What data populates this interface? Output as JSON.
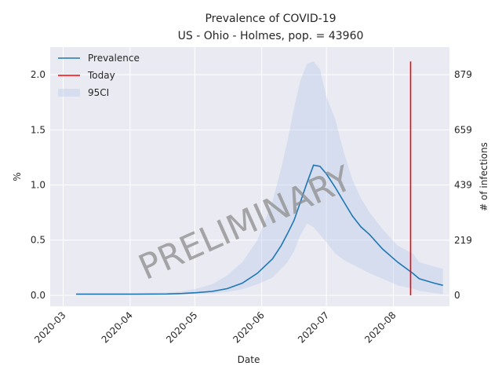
{
  "chart_data": {
    "type": "line",
    "title": "Prevalence of COVID-19",
    "subtitle": "US - Ohio - Holmes, pop. = 43960",
    "xlabel": "Date",
    "ylabel": "%",
    "y2label": "# of infections",
    "xlim": [
      "2020-02-24",
      "2020-08-27"
    ],
    "ylim": [
      -0.1,
      2.25
    ],
    "x_ticks": [
      "2020-03",
      "2020-04",
      "2020-05",
      "2020-06",
      "2020-07",
      "2020-08"
    ],
    "y_ticks": [
      "0.0",
      "0.5",
      "1.0",
      "1.5",
      "2.0"
    ],
    "y2_ticks": [
      {
        "label": "0",
        "value": 0
      },
      {
        "label": "219",
        "value": 0.498
      },
      {
        "label": "439",
        "value": 0.999
      },
      {
        "label": "659",
        "value": 1.499
      },
      {
        "label": "879",
        "value": 2.0
      }
    ],
    "grid": true,
    "legend": "top-left",
    "legend_entries": [
      "Prevalence",
      "Today",
      "95CI"
    ],
    "watermark": "PRELIMINARY",
    "colors": {
      "prevalence": "#1f77b4",
      "today": "#ff0000",
      "ci": "#aec7e8",
      "background": "#eaeaf2",
      "grid": "#ffffff"
    },
    "series": [
      {
        "name": "Prevalence",
        "x": [
          "2020-03-07",
          "2020-03-21",
          "2020-04-04",
          "2020-04-18",
          "2020-04-25",
          "2020-05-02",
          "2020-05-09",
          "2020-05-16",
          "2020-05-23",
          "2020-05-30",
          "2020-06-06",
          "2020-06-10",
          "2020-06-13",
          "2020-06-16",
          "2020-06-19",
          "2020-06-22",
          "2020-06-25",
          "2020-06-28",
          "2020-07-01",
          "2020-07-05",
          "2020-07-09",
          "2020-07-13",
          "2020-07-17",
          "2020-07-21",
          "2020-07-27",
          "2020-08-03",
          "2020-08-10",
          "2020-08-13",
          "2020-08-20",
          "2020-08-24"
        ],
        "y": [
          0.01,
          0.01,
          0.01,
          0.012,
          0.016,
          0.024,
          0.035,
          0.06,
          0.11,
          0.2,
          0.33,
          0.45,
          0.56,
          0.68,
          0.85,
          1.02,
          1.18,
          1.17,
          1.1,
          0.98,
          0.85,
          0.72,
          0.62,
          0.55,
          0.42,
          0.3,
          0.2,
          0.15,
          0.11,
          0.09
        ]
      },
      {
        "name": "95CI",
        "x": [
          "2020-03-07",
          "2020-03-21",
          "2020-04-04",
          "2020-04-18",
          "2020-04-25",
          "2020-05-02",
          "2020-05-09",
          "2020-05-16",
          "2020-05-23",
          "2020-05-30",
          "2020-06-06",
          "2020-06-10",
          "2020-06-13",
          "2020-06-16",
          "2020-06-19",
          "2020-06-22",
          "2020-06-25",
          "2020-06-28",
          "2020-07-01",
          "2020-07-05",
          "2020-07-09",
          "2020-07-13",
          "2020-07-17",
          "2020-07-21",
          "2020-07-27",
          "2020-08-03",
          "2020-08-10",
          "2020-08-13",
          "2020-08-20",
          "2020-08-24"
        ],
        "lower": [
          0.005,
          0.005,
          0.005,
          0.006,
          0.008,
          0.012,
          0.017,
          0.03,
          0.055,
          0.1,
          0.16,
          0.24,
          0.3,
          0.4,
          0.55,
          0.65,
          0.62,
          0.55,
          0.48,
          0.38,
          0.32,
          0.28,
          0.24,
          0.2,
          0.15,
          0.09,
          0.06,
          0.04,
          0.02,
          0.01
        ],
        "upper": [
          0.02,
          0.02,
          0.02,
          0.025,
          0.035,
          0.06,
          0.1,
          0.18,
          0.3,
          0.5,
          0.85,
          1.15,
          1.4,
          1.7,
          1.95,
          2.1,
          2.12,
          2.05,
          1.8,
          1.6,
          1.3,
          1.05,
          0.88,
          0.75,
          0.6,
          0.45,
          0.38,
          0.3,
          0.26,
          0.24
        ]
      }
    ],
    "today": {
      "name": "Today",
      "x": "2020-08-09",
      "y_range": [
        0,
        2.12
      ]
    }
  }
}
